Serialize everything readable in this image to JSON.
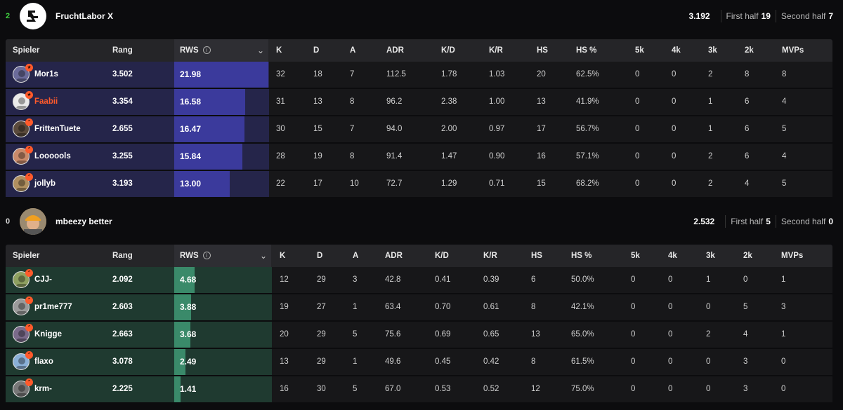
{
  "columns": [
    "Spieler",
    "Rang",
    "RWS",
    "K",
    "D",
    "A",
    "ADR",
    "K/D",
    "K/R",
    "HS",
    "HS %",
    "5k",
    "4k",
    "3k",
    "2k",
    "MVPs"
  ],
  "teams": [
    {
      "score": "2",
      "score_color": "#3fd13f",
      "name": "FruchtLabor X",
      "rating": "3.192",
      "first_half_label": "First half",
      "first_half": "19",
      "second_half_label": "Second half",
      "second_half": "7",
      "row_color": "#25254a",
      "rws_color": "#3b3a9c",
      "rws_max": 21.98,
      "players": [
        {
          "name": "Mor1s",
          "highlight": false,
          "rang": "3.502",
          "rws": "21.98",
          "k": "32",
          "d": "18",
          "a": "7",
          "adr": "112.5",
          "kd": "1.78",
          "kr": "1.03",
          "hs": "20",
          "hsp": "62.5%",
          "k5": "0",
          "k4": "0",
          "k3": "2",
          "k2": "8",
          "mvps": "8",
          "avatar": "#6b6b9a"
        },
        {
          "name": "Faabii",
          "highlight": true,
          "rang": "3.354",
          "rws": "16.58",
          "k": "31",
          "d": "13",
          "a": "8",
          "adr": "96.2",
          "kd": "2.38",
          "kr": "1.00",
          "hs": "13",
          "hsp": "41.9%",
          "k5": "0",
          "k4": "0",
          "k3": "1",
          "k2": "6",
          "mvps": "4",
          "avatar": "#eaeaea"
        },
        {
          "name": "FrittenTuete",
          "highlight": false,
          "rang": "2.655",
          "rws": "16.47",
          "k": "30",
          "d": "15",
          "a": "7",
          "adr": "94.0",
          "kd": "2.00",
          "kr": "0.97",
          "hs": "17",
          "hsp": "56.7%",
          "k5": "0",
          "k4": "0",
          "k3": "1",
          "k2": "6",
          "mvps": "5",
          "avatar": "#5a4a3c"
        },
        {
          "name": "Loooools",
          "highlight": false,
          "rang": "3.255",
          "rws": "15.84",
          "k": "28",
          "d": "19",
          "a": "8",
          "adr": "91.4",
          "kd": "1.47",
          "kr": "0.90",
          "hs": "16",
          "hsp": "57.1%",
          "k5": "0",
          "k4": "0",
          "k3": "2",
          "k2": "6",
          "mvps": "4",
          "avatar": "#c98a6a"
        },
        {
          "name": "jollyb",
          "highlight": false,
          "rang": "3.193",
          "rws": "13.00",
          "k": "22",
          "d": "17",
          "a": "10",
          "adr": "72.7",
          "kd": "1.29",
          "kr": "0.71",
          "hs": "15",
          "hsp": "68.2%",
          "k5": "0",
          "k4": "0",
          "k3": "2",
          "k2": "4",
          "mvps": "5",
          "avatar": "#b09060"
        }
      ]
    },
    {
      "score": "0",
      "score_color": "#d6d6d6",
      "name": "mbeezy better",
      "rating": "2.532",
      "first_half_label": "First half",
      "first_half": "5",
      "second_half_label": "Second half",
      "second_half": "0",
      "row_color": "#1f3a30",
      "rws_color": "#3a8a6a",
      "rws_max": 21.98,
      "players": [
        {
          "name": "CJJ-",
          "highlight": false,
          "rang": "2.092",
          "rws": "4.68",
          "k": "12",
          "d": "29",
          "a": "3",
          "adr": "42.8",
          "kd": "0.41",
          "kr": "0.39",
          "hs": "6",
          "hsp": "50.0%",
          "k5": "0",
          "k4": "0",
          "k3": "1",
          "k2": "0",
          "mvps": "1",
          "avatar": "#8ea060"
        },
        {
          "name": "pr1me777",
          "highlight": false,
          "rang": "2.603",
          "rws": "3.88",
          "k": "19",
          "d": "27",
          "a": "1",
          "adr": "63.4",
          "kd": "0.70",
          "kr": "0.61",
          "hs": "8",
          "hsp": "42.1%",
          "k5": "0",
          "k4": "0",
          "k3": "0",
          "k2": "5",
          "mvps": "3",
          "avatar": "#9a9a9a"
        },
        {
          "name": "Knigge",
          "highlight": false,
          "rang": "2.663",
          "rws": "3.68",
          "k": "20",
          "d": "29",
          "a": "5",
          "adr": "75.6",
          "kd": "0.69",
          "kr": "0.65",
          "hs": "13",
          "hsp": "65.0%",
          "k5": "0",
          "k4": "0",
          "k3": "2",
          "k2": "4",
          "mvps": "1",
          "avatar": "#7a6a8a"
        },
        {
          "name": "flaxo",
          "highlight": false,
          "rang": "3.078",
          "rws": "2.49",
          "k": "13",
          "d": "29",
          "a": "1",
          "adr": "49.6",
          "kd": "0.45",
          "kr": "0.42",
          "hs": "8",
          "hsp": "61.5%",
          "k5": "0",
          "k4": "0",
          "k3": "0",
          "k2": "3",
          "mvps": "0",
          "avatar": "#8ab0d8"
        },
        {
          "name": "krm-",
          "highlight": false,
          "rang": "2.225",
          "rws": "1.41",
          "k": "16",
          "d": "30",
          "a": "5",
          "adr": "67.0",
          "kd": "0.53",
          "kr": "0.52",
          "hs": "12",
          "hsp": "75.0%",
          "k5": "0",
          "k4": "0",
          "k3": "0",
          "k2": "3",
          "mvps": "0",
          "avatar": "#777777"
        }
      ]
    }
  ]
}
